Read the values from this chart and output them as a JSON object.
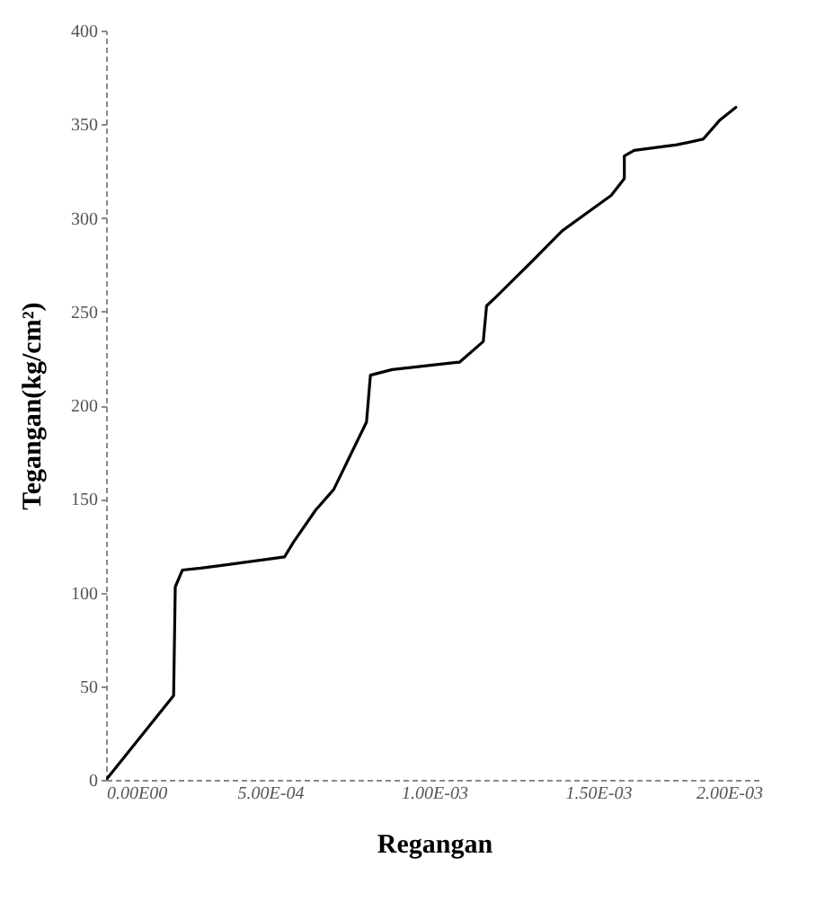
{
  "chart_data": {
    "type": "line",
    "xlabel": "Regangan",
    "ylabel": "Tegangan(kg/cm²)",
    "x": [
      0,
      0.000206,
      0.000211,
      0.000233,
      0.000289,
      0.000544,
      0.000572,
      0.000639,
      0.000694,
      0.000794,
      0.000806,
      0.000872,
      0.001078,
      0.00115,
      0.00116,
      0.00119,
      0.0013,
      0.00139,
      0.00154,
      0.00158,
      0.00158,
      0.00161,
      0.00174,
      0.00182,
      0.00187,
      0.00192
    ],
    "series": [
      {
        "color": "#000000",
        "values": [
          0,
          45,
          103,
          112,
          113,
          119,
          127,
          144,
          155,
          191,
          216,
          219,
          223,
          234,
          253,
          258,
          277,
          293,
          312,
          321,
          333,
          336,
          339,
          342,
          352,
          359
        ]
      }
    ],
    "xlim": [
      0,
      0.002
    ],
    "ylim": [
      0,
      400
    ],
    "xticks": [
      {
        "value": 0,
        "label": "0.00E00"
      },
      {
        "value": 0.0005,
        "label": "5.00E-04"
      },
      {
        "value": 0.001,
        "label": "1.00E-03"
      },
      {
        "value": 0.0015,
        "label": "1.50E-03"
      },
      {
        "value": 0.002,
        "label": "2.00E-03"
      }
    ],
    "yticks": [
      0,
      50,
      100,
      150,
      200,
      250,
      300,
      350,
      400
    ],
    "grid": false,
    "marker": "none",
    "line_style": "solid"
  }
}
